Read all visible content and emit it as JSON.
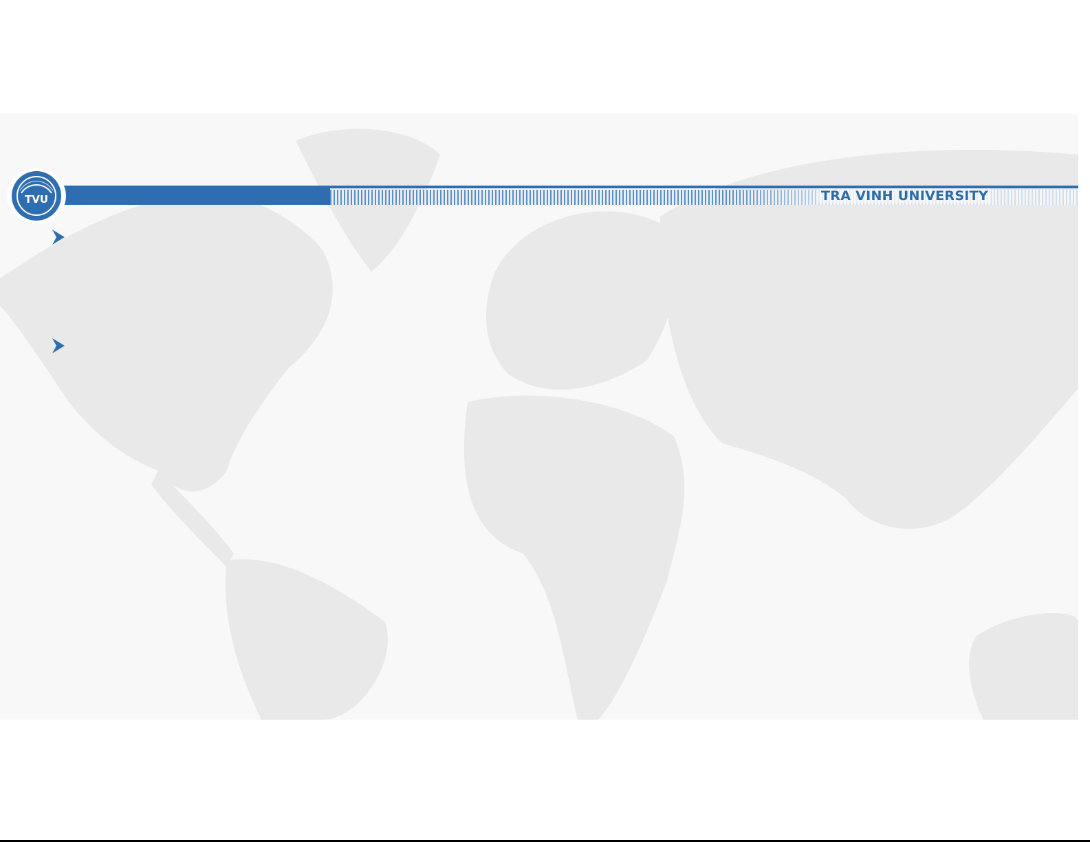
{
  "header": {
    "title": "TRA VINH UNIVERSITY",
    "logo_text": "TVU"
  },
  "colors": {
    "brand": "#2e6eb0",
    "map": "#e8e8e8"
  },
  "bullets": [
    {
      "icon": "chevron-right-icon"
    },
    {
      "icon": "chevron-right-icon"
    }
  ]
}
